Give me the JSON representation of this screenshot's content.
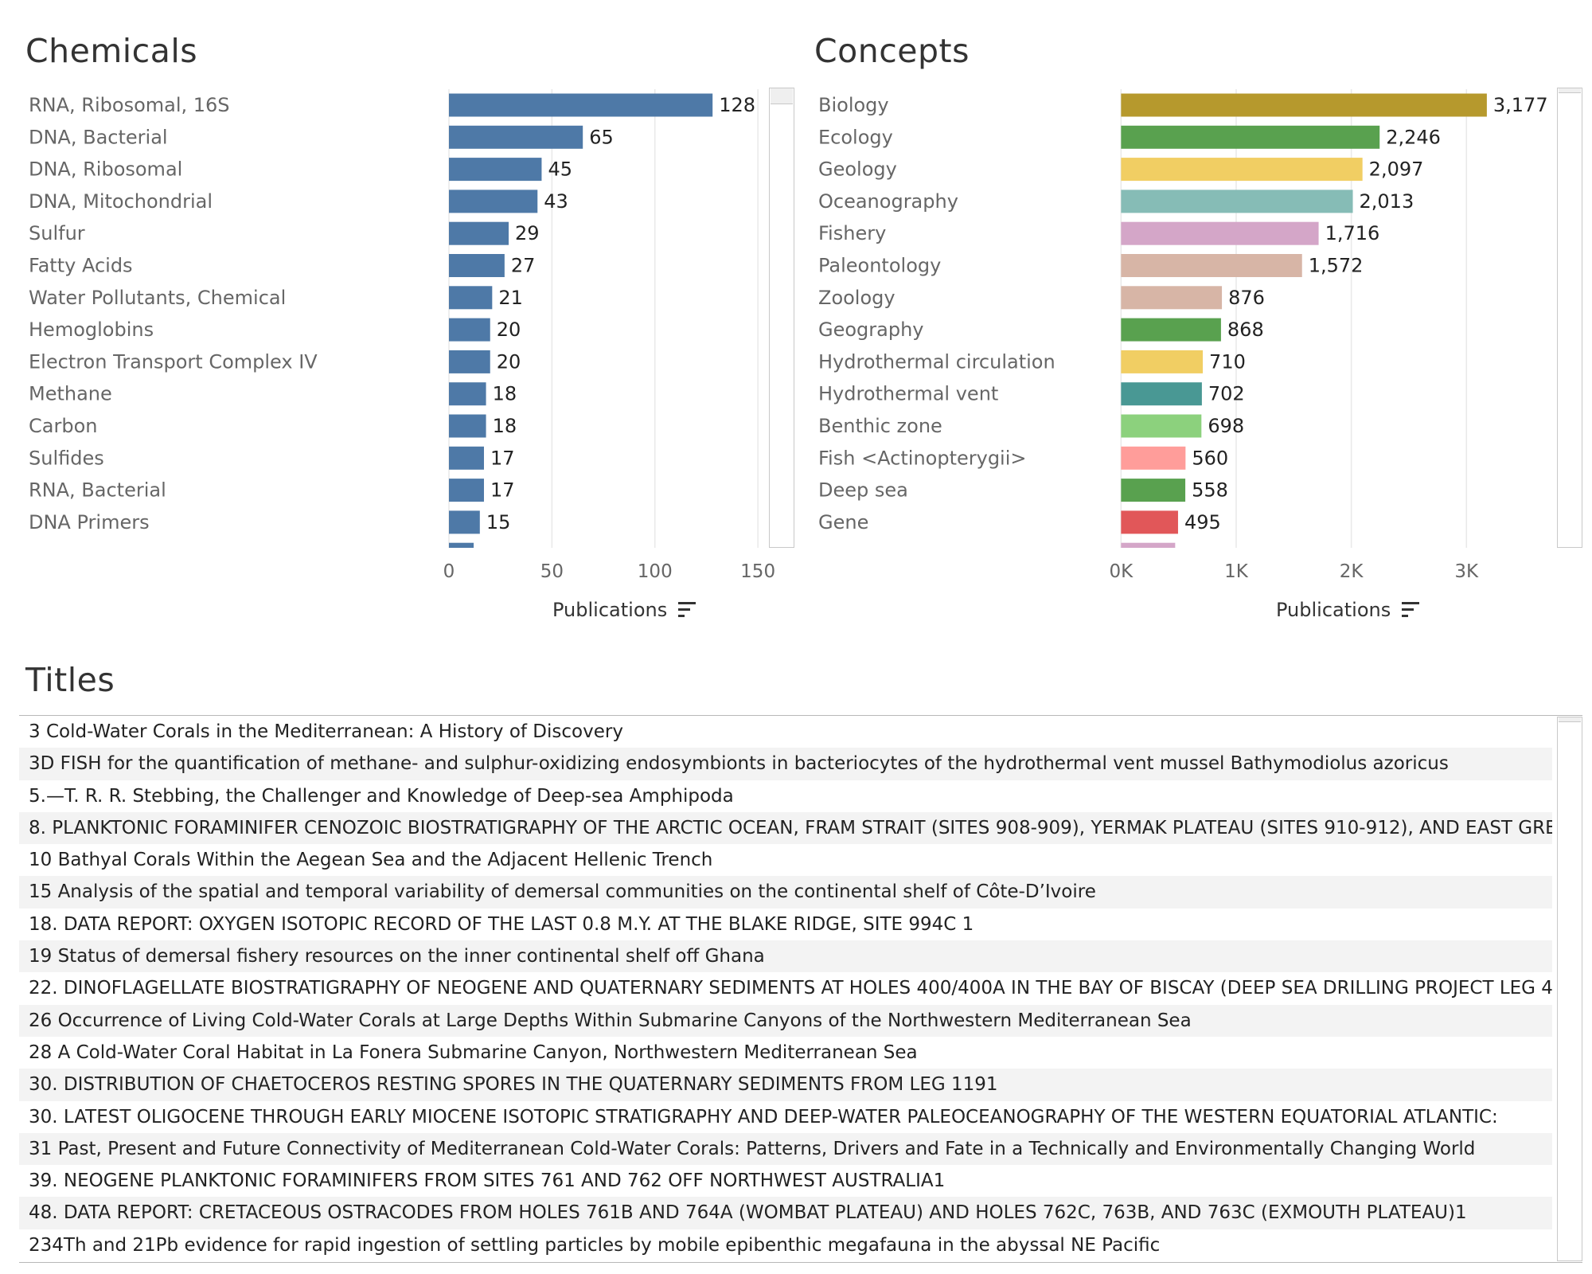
{
  "chemicals": {
    "title": "Chemicals",
    "axis_title": "Publications",
    "sort_icon": "sort-descending-icon"
  },
  "concepts": {
    "title": "Concepts",
    "axis_title": "Publications",
    "sort_icon": "sort-descending-icon"
  },
  "titles_section": {
    "title": "Titles",
    "rows": [
      "3 Cold-Water Corals in the Mediterranean: A History of Discovery",
      "3D FISH for the quantification of methane- and sulphur-oxidizing endosymbionts in bacteriocytes of the hydrothermal vent mussel Bathymodiolus azoricus",
      "5.—T. R. R. Stebbing, the Challenger and Knowledge of Deep-sea Amphipoda",
      "8. PLANKTONIC FORAMINIFER CENOZOIC BIOSTRATIGRAPHY OF THE ARCTIC OCEAN, FRAM STRAIT (SITES 908-909), YERMAK PLATEAU (SITES 910-912), AND EAST GRE..",
      "10 Bathyal Corals Within the Aegean Sea and the Adjacent Hellenic Trench",
      "15 Analysis of the spatial and temporal variability of demersal communities on the continental shelf of Côte-D’Ivoire",
      "18. DATA REPORT: OXYGEN ISOTOPIC RECORD OF THE LAST 0.8 M.Y. AT THE BLAKE RIDGE, SITE 994C 1",
      "19 Status of demersal fishery resources on the inner continental shelf off Ghana",
      "22. DINOFLAGELLATE BIOSTRATIGRAPHY OF NEOGENE AND QUATERNARY SEDIMENTS AT HOLES 400/400A IN THE BAY OF BISCAY (DEEP SEA DRILLING PROJECT LEG 4..",
      "26 Occurrence of Living Cold-Water Corals at Large Depths Within Submarine Canyons of the Northwestern Mediterranean Sea",
      "28 A Cold-Water Coral Habitat in La Fonera Submarine Canyon, Northwestern Mediterranean Sea",
      "30. DISTRIBUTION OF CHAETOCEROS RESTING SPORES IN THE QUATERNARY SEDIMENTS FROM LEG 1191",
      "30. LATEST OLIGOCENE THROUGH EARLY MIOCENE ISOTOPIC STRATIGRAPHY AND DEEP-WATER PALEOCEANOGRAPHY OF THE WESTERN EQUATORIAL ATLANTIC:",
      "31 Past, Present and Future Connectivity of Mediterranean Cold-Water Corals: Patterns, Drivers and Fate in a Technically and Environmentally Changing World",
      "39. NEOGENE PLANKTONIC FORAMINIFERS FROM SITES 761 AND 762 OFF NORTHWEST AUSTRALIA1",
      "48. DATA REPORT: CRETACEOUS OSTRACODES FROM HOLES 761B AND 764A (WOMBAT PLATEAU) AND HOLES 762C, 763B, AND 763C (EXMOUTH PLATEAU)1",
      "234Th and 21Pb evidence for rapid ingestion of settling particles by mobile epibenthic megafauna in the abyssal NE Pacific"
    ]
  },
  "chart_data": [
    {
      "type": "bar",
      "orientation": "horizontal",
      "title": "Chemicals",
      "xlabel": "Publications",
      "xlim": [
        0,
        160
      ],
      "x_ticks": [
        "0",
        "50",
        "100",
        "150"
      ],
      "x_tick_values": [
        0,
        50,
        100,
        150
      ],
      "categories": [
        "RNA, Ribosomal, 16S",
        "DNA, Bacterial",
        "DNA, Ribosomal",
        "DNA, Mitochondrial",
        "Sulfur",
        "Fatty Acids",
        "Water Pollutants, Chemical",
        "Hemoglobins",
        "Electron Transport Complex IV",
        "Methane",
        "Carbon",
        "Sulfides",
        "RNA, Bacterial",
        "DNA Primers"
      ],
      "values": [
        128,
        65,
        45,
        43,
        29,
        27,
        21,
        20,
        20,
        18,
        18,
        17,
        17,
        15
      ],
      "value_labels": [
        "128",
        "65",
        "45",
        "43",
        "29",
        "27",
        "21",
        "20",
        "20",
        "18",
        "18",
        "17",
        "17",
        "15"
      ],
      "colors": [
        "#4e79a7",
        "#4e79a7",
        "#4e79a7",
        "#4e79a7",
        "#4e79a7",
        "#4e79a7",
        "#4e79a7",
        "#4e79a7",
        "#4e79a7",
        "#4e79a7",
        "#4e79a7",
        "#4e79a7",
        "#4e79a7",
        "#4e79a7"
      ],
      "partial_next_value": 12,
      "partial_next_color": "#4e79a7",
      "grid": true
    },
    {
      "type": "bar",
      "orientation": "horizontal",
      "title": "Concepts",
      "xlabel": "Publications",
      "xlim": [
        -120,
        3800
      ],
      "x_ticks": [
        "0K",
        "1K",
        "2K",
        "3K"
      ],
      "x_tick_values": [
        0,
        1000,
        2000,
        3000
      ],
      "categories": [
        "Biology",
        "Ecology",
        "Geology",
        "Oceanography",
        "Fishery",
        "Paleontology",
        "Zoology",
        "Geography",
        "Hydrothermal circulation",
        "Hydrothermal vent",
        "Benthic zone",
        "Fish <Actinopterygii>",
        "Deep sea",
        "Gene"
      ],
      "values": [
        3177,
        2246,
        2097,
        2013,
        1716,
        1572,
        876,
        868,
        710,
        702,
        698,
        560,
        558,
        495
      ],
      "value_labels": [
        "3,177",
        "2,246",
        "2,097",
        "2,013",
        "1,716",
        "1,572",
        "876",
        "868",
        "710",
        "702",
        "698",
        "560",
        "558",
        "495"
      ],
      "colors": [
        "#b6992d",
        "#59a14f",
        "#f1ce63",
        "#86bcb6",
        "#d4a6c8",
        "#d7b5a6",
        "#d7b5a6",
        "#59a14f",
        "#f1ce63",
        "#499894",
        "#8cd17d",
        "#ff9d9a",
        "#59a14f",
        "#e15759"
      ],
      "partial_next_value": 470,
      "partial_next_color": "#d4a6c8",
      "grid": true
    }
  ]
}
